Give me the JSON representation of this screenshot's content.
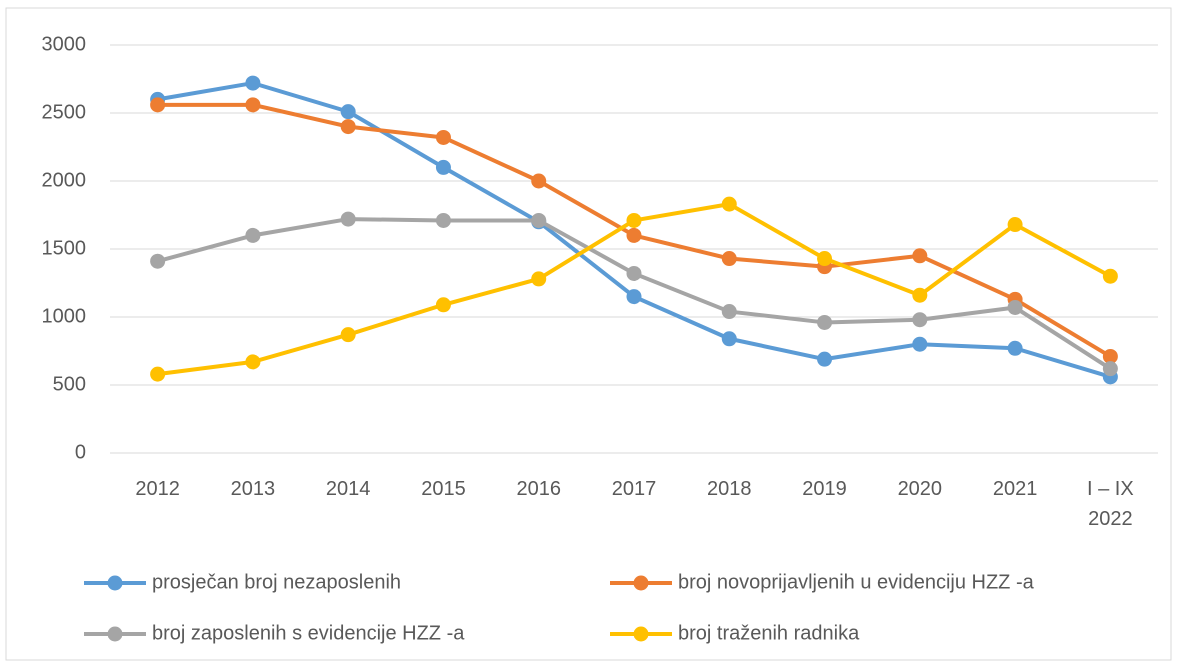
{
  "chart_data": {
    "type": "line",
    "categories": [
      "2012",
      "2013",
      "2014",
      "2015",
      "2016",
      "2017",
      "2018",
      "2019",
      "2020",
      "2021",
      "I – IX 2022"
    ],
    "series": [
      {
        "name": "prosječan broj nezaposlenih",
        "color": "#5b9bd5",
        "values": [
          2600,
          2720,
          2510,
          2100,
          1700,
          1150,
          840,
          690,
          800,
          770,
          560
        ]
      },
      {
        "name": "broj novoprijavljenih u evidenciju HZZ -a",
        "color": "#ed7d31",
        "values": [
          2560,
          2560,
          2400,
          2320,
          2000,
          1600,
          1430,
          1370,
          1450,
          1130,
          710
        ]
      },
      {
        "name": "broj zaposlenih s evidencije HZZ -a",
        "color": "#a5a5a5",
        "values": [
          1410,
          1600,
          1720,
          1710,
          1710,
          1320,
          1040,
          960,
          980,
          1070,
          620
        ]
      },
      {
        "name": "broj traženih radnika",
        "color": "#ffc000",
        "values": [
          580,
          670,
          870,
          1090,
          1280,
          1710,
          1830,
          1430,
          1160,
          1680,
          1300
        ]
      }
    ],
    "ylim": [
      0,
      3000
    ],
    "yticks": [
      0,
      500,
      1000,
      1500,
      2000,
      2500,
      3000
    ],
    "grid": true,
    "legend": "bottom"
  }
}
